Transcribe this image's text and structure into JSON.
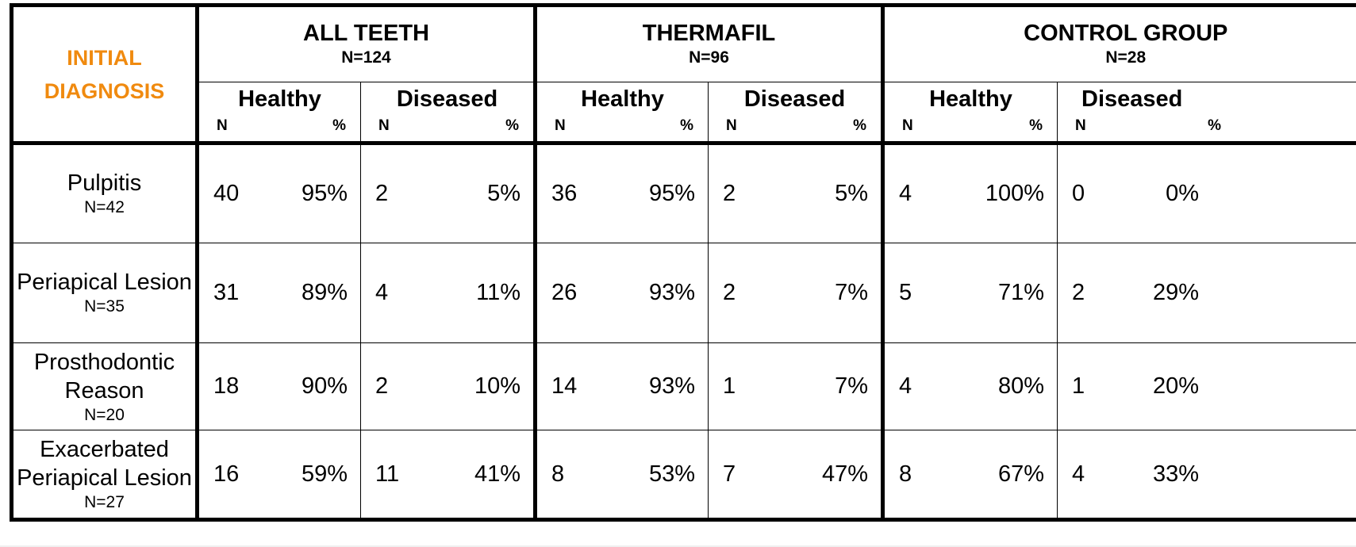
{
  "corner_label_line1": "INITIAL",
  "corner_label_line2": "DIAGNOSIS",
  "colors": {
    "accent": "#f08a0f",
    "border": "#000000"
  },
  "groups": [
    {
      "title": "ALL TEETH",
      "n": "N=124"
    },
    {
      "title": "THERMAFIL",
      "n": "N=96"
    },
    {
      "title": "CONTROL GROUP",
      "n": "N=28"
    }
  ],
  "sub_labels": {
    "healthy": "Healthy",
    "diseased": "Diseased",
    "n": "N",
    "pct": "%"
  },
  "rows": [
    {
      "label_lines": [
        "Pulpitis"
      ],
      "n": "N=42",
      "cells": [
        [
          "40",
          "95%"
        ],
        [
          "2",
          "5%"
        ],
        [
          "36",
          "95%"
        ],
        [
          "2",
          "5%"
        ],
        [
          "4",
          "100%"
        ],
        [
          "0",
          "0%"
        ]
      ]
    },
    {
      "label_lines": [
        "Periapical Lesion"
      ],
      "n": "N=35",
      "cells": [
        [
          "31",
          "89%"
        ],
        [
          "4",
          "11%"
        ],
        [
          "26",
          "93%"
        ],
        [
          "2",
          "7%"
        ],
        [
          "5",
          "71%"
        ],
        [
          "2",
          "29%"
        ]
      ]
    },
    {
      "label_lines": [
        "Prosthodontic",
        "Reason"
      ],
      "n": "N=20",
      "cells": [
        [
          "18",
          "90%"
        ],
        [
          "2",
          "10%"
        ],
        [
          "14",
          "93%"
        ],
        [
          "1",
          "7%"
        ],
        [
          "4",
          "80%"
        ],
        [
          "1",
          "20%"
        ]
      ]
    },
    {
      "label_lines": [
        "Exacerbated",
        "Periapical Lesion"
      ],
      "n": "N=27",
      "cells": [
        [
          "16",
          "59%"
        ],
        [
          "11",
          "41%"
        ],
        [
          "8",
          "53%"
        ],
        [
          "7",
          "47%"
        ],
        [
          "8",
          "67%"
        ],
        [
          "4",
          "33%"
        ]
      ]
    }
  ]
}
